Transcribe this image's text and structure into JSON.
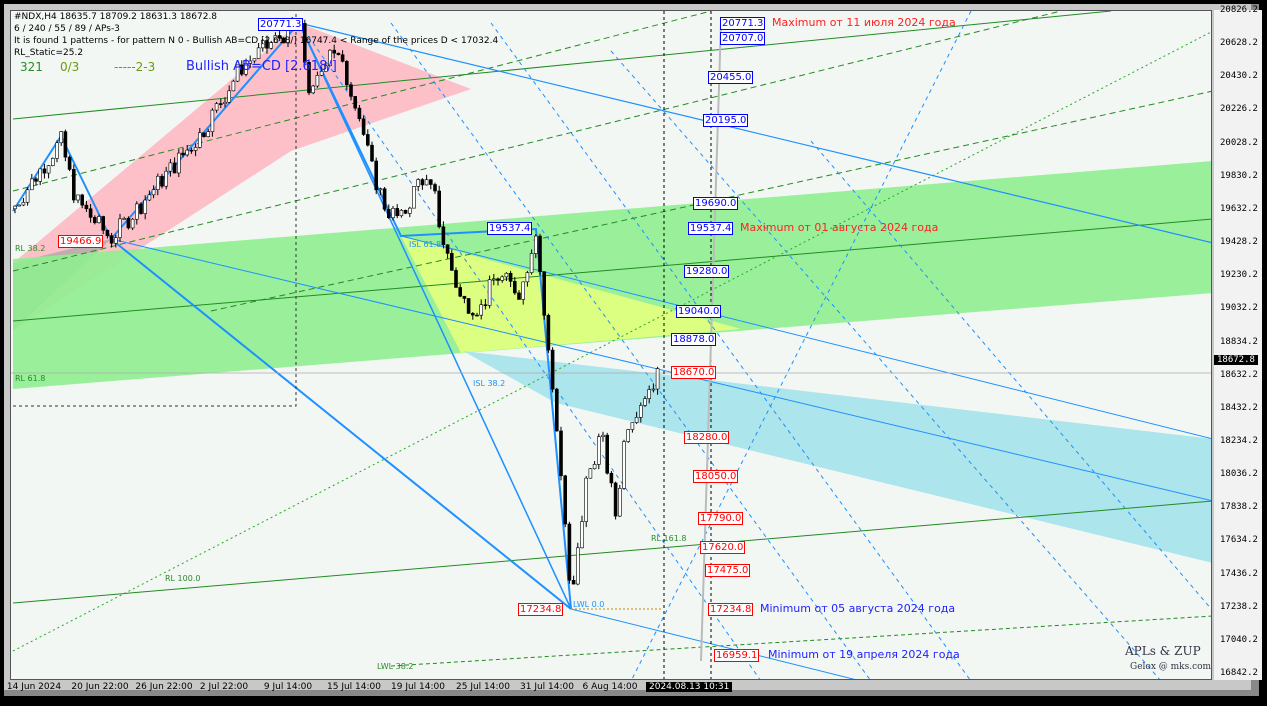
{
  "header": {
    "symbol_line": "#NDX,H4  18635.7 18709.2 18631.3 18672.8",
    "params": "6 / 240 / 55 / 89 / APs-3",
    "patterns": "It is found 1 patterns  -  for pattern N 0 - Bullish AB=CD [2.618/] 16747.4 < Range of the prices D < 17032.4",
    "rl_static": "RL_Static=25.2",
    "counter1": "321",
    "counter2": "0/3",
    "counter3": "-----2-3",
    "pattern_name": "Bullish AB=CD [2.618/]"
  },
  "chart_data": {
    "type": "candlestick",
    "symbol": "#NDX",
    "timeframe": "H4",
    "ylim": [
      16842.2,
      20826.2
    ],
    "y_ticks": [
      "20826.2",
      "20628.2",
      "20430.2",
      "20226.2",
      "20028.2",
      "19830.2",
      "19632.2",
      "19428.2",
      "19230.2",
      "19032.2",
      "18834.2",
      "18632.2",
      "18432.2",
      "18234.2",
      "18036.2",
      "17838.2",
      "17634.2",
      "17436.2",
      "17238.2",
      "17040.2",
      "16842.2"
    ],
    "x_ticks": [
      "14 Jun 2024",
      "20 Jun 22:00",
      "26 Jun 22:00",
      "2 Jul 22:00",
      "9 Jul 14:00",
      "15 Jul 14:00",
      "19 Jul 14:00",
      "25 Jul 14:00",
      "31 Jul 14:00",
      "6 Aug 14:00"
    ],
    "crosshair_time": "2024.08.13 10:31",
    "current_price": "18672.8",
    "approx_close_path": [
      19650,
      20060,
      19700,
      19470,
      20100,
      20500,
      20771.3,
      20300,
      20650,
      20300,
      19900,
      19650,
      19580,
      19850,
      19700,
      19500,
      19100,
      19050,
      19250,
      19150,
      19537.4,
      18900,
      18400,
      17700,
      17234.8,
      18000,
      18300,
      17800,
      18350,
      18550,
      18672.8
    ],
    "level_labels": {
      "blue": [
        "20771.3",
        "20707.0",
        "20455.0",
        "20195.0",
        "19690.0",
        "19537.4",
        "19280.0",
        "19040.0",
        "18878.0"
      ],
      "red": [
        "18670.0",
        "18280.0",
        "18050.0",
        "17790.0",
        "17620.0",
        "17475.0",
        "17234.8",
        "16959.1"
      ]
    },
    "point_labels": {
      "high": "20771.3",
      "low_a": "19466.9",
      "high_c": "19537.4",
      "low_d": "17234.8"
    },
    "annotations": {
      "max_july": "Maximum от 11 июля 2024 года",
      "max_aug": "Maximum от 01 августа 2024 года",
      "min_aug": "Minimum от 05 августа 2024 года",
      "min_apr": "Minimum от 19 апреля 2024 года"
    },
    "fib_labels": [
      "RL 38.2",
      "ISL 61.8",
      "ISL 38.2",
      "LWL 0.0",
      "LWL 38.2",
      "RL 100.0",
      "RL 161.8",
      "RL 61.8"
    ],
    "colors": {
      "pink": "#ffb6c1",
      "green": "#90ee90",
      "yellow": "#e0ff80",
      "cyan": "#a8e4ea",
      "blue_line": "#1e90ff",
      "bull": "#ffffff",
      "bear": "#000000"
    }
  },
  "signature": {
    "title": "APLs & ZUP",
    "author": "Gelox @ mks.com"
  }
}
